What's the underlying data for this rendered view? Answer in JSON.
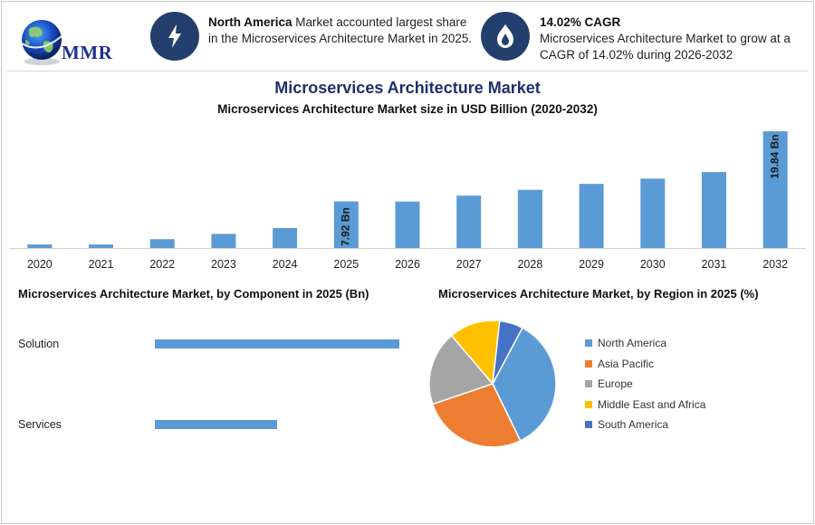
{
  "logo": {
    "text": "MMR"
  },
  "info1": {
    "bold": "North America",
    "text": " Market accounted largest share in the Microservices Architecture Market in 2025.",
    "icon": "lightning-bolt-icon"
  },
  "info2": {
    "bold": "14.02% CAGR",
    "text": "Microservices Architecture Market to grow at a CAGR of 14.02% during 2026-2032",
    "icon": "flame-drop-icon"
  },
  "colors": {
    "bar": "#5b9bd5",
    "icon_bg": "#223f6e",
    "title": "#1f2f6b"
  },
  "main_title": "Microservices Architecture Market",
  "chart_data": [
    {
      "type": "bar",
      "title": "Microservices Architecture Market size in USD Billion (2020-2032)",
      "categories": [
        "2020",
        "2021",
        "2022",
        "2023",
        "2024",
        "2025",
        "2026",
        "2027",
        "2028",
        "2029",
        "2030",
        "2031",
        "2032"
      ],
      "values": [
        0.6,
        0.6,
        1.5,
        2.4,
        3.4,
        7.92,
        7.9,
        8.9,
        9.9,
        10.9,
        11.8,
        12.9,
        19.84
      ],
      "data_labels": [
        {
          "index": 5,
          "text": "7.92 Bn"
        },
        {
          "index": 12,
          "text": "19.84 Bn"
        }
      ],
      "ylim": [
        0,
        20
      ],
      "grid": false,
      "color": "#5b9bd5"
    },
    {
      "type": "bar",
      "orientation": "horizontal",
      "title": "Microservices Architecture Market, by Component in 2025 (Bn)",
      "categories": [
        "Solution",
        "Services"
      ],
      "values": [
        5.0,
        2.5
      ],
      "color": "#5b9bd5"
    },
    {
      "type": "pie",
      "title": "Microservices Architecture Market, by Region in 2025 (%)",
      "labels": [
        "North America",
        "Asia Pacific",
        "Europe",
        "Middle East and Africa",
        "South America"
      ],
      "values": [
        35,
        27,
        19,
        13,
        6
      ],
      "colors": [
        "#5b9bd5",
        "#ed7d31",
        "#a5a5a5",
        "#ffc000",
        "#4472c4"
      ],
      "legend": "right"
    }
  ]
}
